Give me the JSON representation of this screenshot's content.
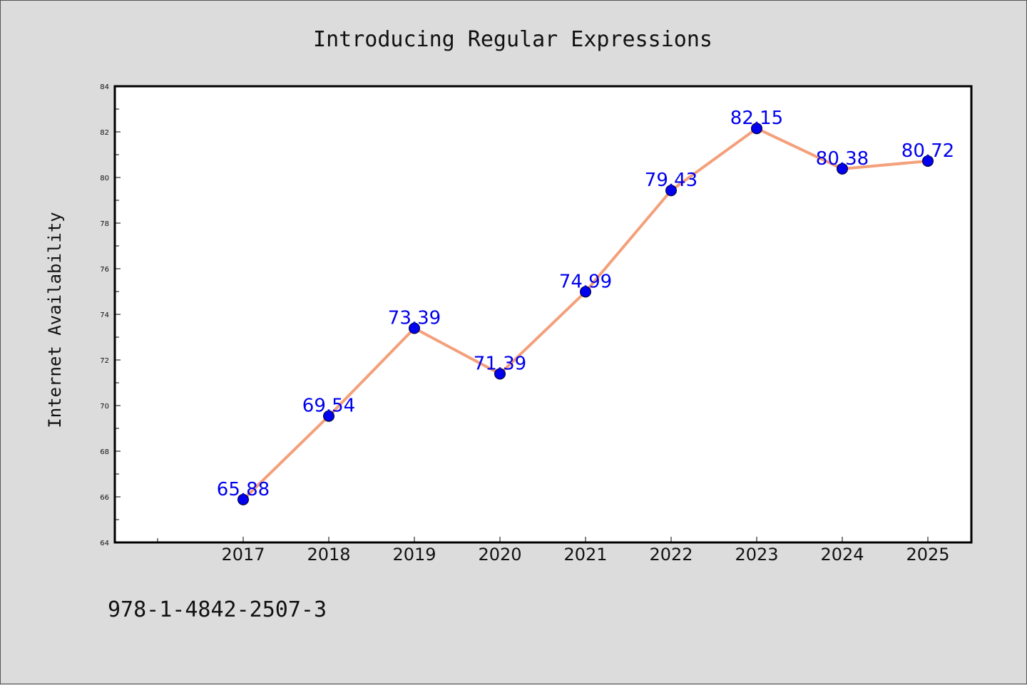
{
  "chart_data": {
    "type": "line",
    "title": "Introducing Regular Expressions",
    "xlabel": "",
    "ylabel": "Internet Availability",
    "categories": [
      "2017",
      "2018",
      "2019",
      "2020",
      "2021",
      "2022",
      "2023",
      "2024",
      "2025"
    ],
    "series": [
      {
        "values": [
          65.88,
          69.54,
          73.39,
          71.39,
          74.99,
          79.43,
          82.15,
          80.38,
          80.72
        ],
        "labels": [
          "65.88",
          "69.54",
          "73.39",
          "71.39",
          "74.99",
          "79.43",
          "82.15",
          "80.38",
          "80.72"
        ],
        "line_color": "#f4a07a",
        "marker_color": "#0000ee",
        "label_color": "#0000ee"
      }
    ],
    "ylim": [
      64,
      84
    ],
    "yticks": [
      "64",
      "66",
      "68",
      "70",
      "72",
      "74",
      "76",
      "78",
      "80",
      "82",
      "84"
    ],
    "grid": false,
    "legend": "none"
  },
  "footer": {
    "isbn": "978-1-4842-2507-3"
  },
  "colors": {
    "background": "#dcdcdc",
    "plot_background": "#ffffff"
  }
}
